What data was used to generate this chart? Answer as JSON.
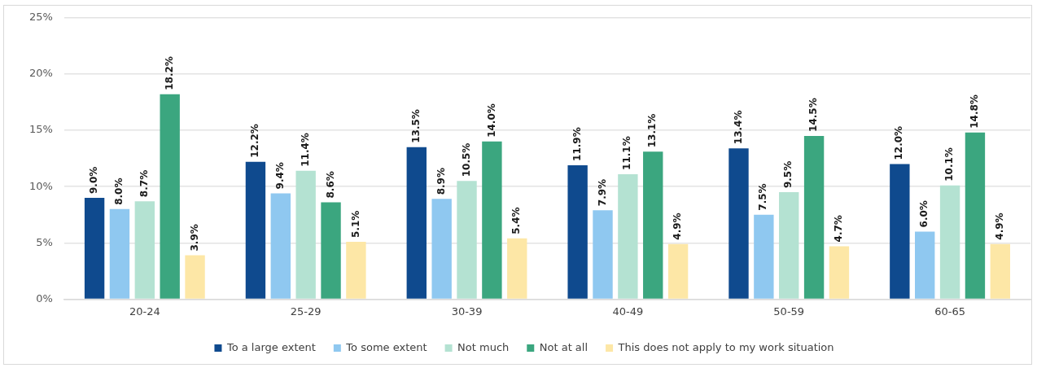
{
  "chart_data": {
    "type": "bar",
    "categories": [
      "20-24",
      "25-29",
      "30-39",
      "40-49",
      "50-59",
      "60-65"
    ],
    "series": [
      {
        "name": "To a large extent",
        "color": "#0f4a8e",
        "values": [
          9.0,
          12.2,
          13.5,
          11.9,
          13.4,
          12.0
        ],
        "value_labels": [
          "9.0%",
          "12.2%",
          "13.5%",
          "11.9%",
          "13.4%",
          "12.0%"
        ]
      },
      {
        "name": "To some extent",
        "color": "#8fc8f0",
        "values": [
          8.0,
          9.4,
          8.9,
          7.9,
          7.5,
          6.0
        ],
        "value_labels": [
          "8.0%",
          "9.4%",
          "8.9%",
          "7.9%",
          "7.5%",
          "6.0%"
        ]
      },
      {
        "name": "Not much",
        "color": "#b4e2d2",
        "values": [
          8.7,
          11.4,
          10.5,
          11.1,
          9.5,
          10.1
        ],
        "value_labels": [
          "8.7%",
          "11.4%",
          "10.5%",
          "11.1%",
          "9.5%",
          "10.1%"
        ]
      },
      {
        "name": "Not at all",
        "color": "#3ba67f",
        "values": [
          18.2,
          8.6,
          14.0,
          13.1,
          14.5,
          14.8
        ],
        "value_labels": [
          "18.2%",
          "8.6%",
          "14.0%",
          "13.1%",
          "14.5%",
          "14.8%"
        ]
      },
      {
        "name": "This does not apply to my work situation",
        "color": "#fde7a6",
        "values": [
          3.9,
          5.1,
          5.4,
          4.9,
          4.7,
          4.9
        ],
        "value_labels": [
          "3.9%",
          "5.1%",
          "5.4%",
          "4.9%",
          "4.7%",
          "4.9%"
        ]
      }
    ],
    "ylim": [
      0,
      25
    ],
    "yticks": [
      {
        "value": 0,
        "label": "0%"
      },
      {
        "value": 5,
        "label": "5%"
      },
      {
        "value": 10,
        "label": "10%"
      },
      {
        "value": 15,
        "label": "15%"
      },
      {
        "value": 20,
        "label": "20%"
      },
      {
        "value": 25,
        "label": "25%"
      }
    ],
    "grid": "y",
    "legend": "bottom"
  }
}
